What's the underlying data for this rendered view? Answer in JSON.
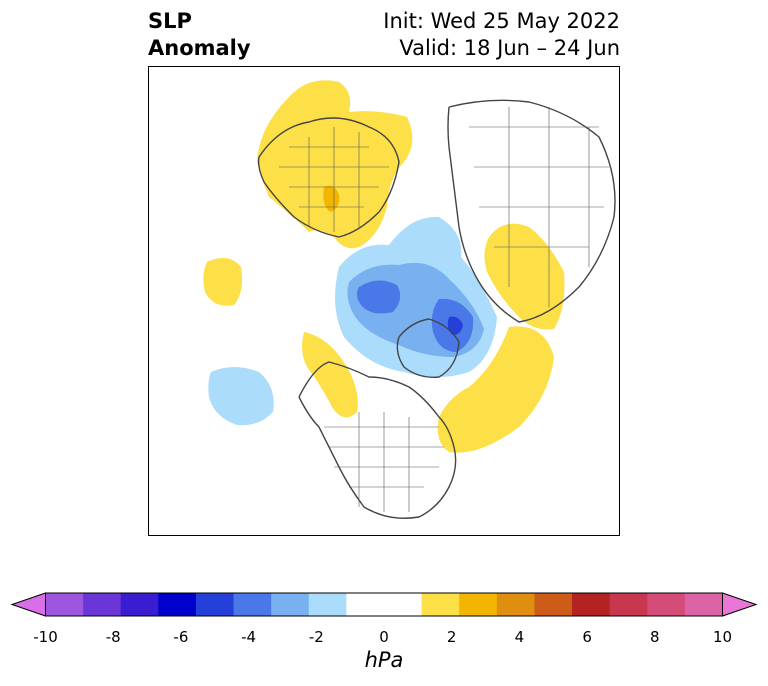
{
  "title": {
    "left_line1": "SLP",
    "left_line2": "Anomaly",
    "init": "Init: Wed 25 May 2022",
    "valid": "Valid: 18 Jun – 24 Jun"
  },
  "colorbar": {
    "unit": "hPa",
    "ticks": [
      "-10",
      "-8",
      "-6",
      "-4",
      "-2",
      "0",
      "2",
      "4",
      "6",
      "8",
      "10"
    ],
    "colors": [
      "#d86ee8",
      "#9e55e0",
      "#6a36d8",
      "#3a1dd0",
      "#0000cc",
      "#2540d8",
      "#4a78e8",
      "#78b0f0",
      "#acdcfc",
      "#ffffff",
      "#ffffff",
      "#fde047",
      "#f2b600",
      "#e08e10",
      "#cc5c18",
      "#b42222",
      "#c8374e",
      "#d44d78",
      "#dc64a6",
      "#e877d8"
    ]
  }
}
